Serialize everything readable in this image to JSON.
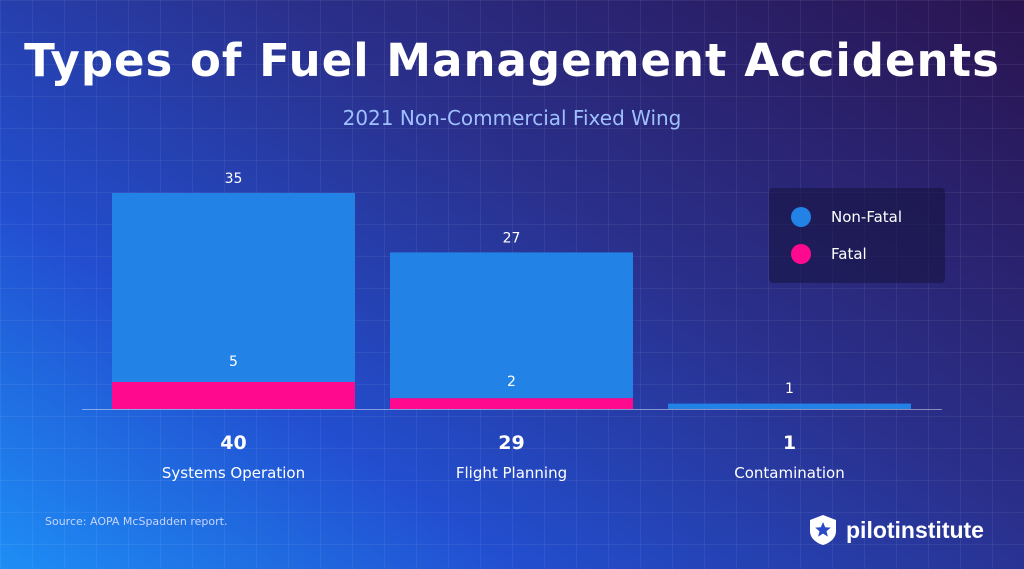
{
  "title": "Types of Fuel Management Accidents",
  "subtitle": "2021 Non-Commercial Fixed Wing",
  "chart_data": {
    "type": "bar",
    "stacked": true,
    "categories": [
      "Systems Operation",
      "Flight Planning",
      "Contamination"
    ],
    "totals": [
      "40",
      "29",
      "1"
    ],
    "series": [
      {
        "name": "Non-Fatal",
        "values": [
          35,
          27,
          1
        ],
        "color": "#2382e6"
      },
      {
        "name": "Fatal",
        "values": [
          5,
          2,
          0
        ],
        "color": "#ff0a8f"
      }
    ],
    "data_labels": {
      "Non-Fatal": [
        "35",
        "27",
        "1"
      ],
      "Fatal": [
        "5",
        "2",
        ""
      ]
    },
    "ylim": [
      0,
      40
    ],
    "grid": false,
    "legend_position": "top-right"
  },
  "legend": {
    "items": [
      {
        "label": "Non-Fatal",
        "color": "#2382e6"
      },
      {
        "label": "Fatal",
        "color": "#ff0a8f"
      }
    ]
  },
  "source": "Source: AOPA McSpadden report.",
  "brand": {
    "name": "pilotinstitute",
    "logo_icon": "star-badge-icon"
  }
}
